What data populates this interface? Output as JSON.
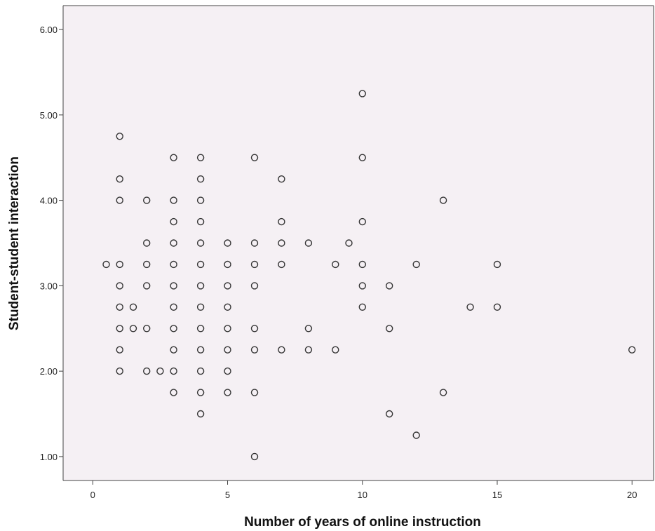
{
  "chart_data": {
    "type": "scatter",
    "title": "",
    "xlabel": "Number of years of online instruction",
    "ylabel": "Student-student interaction",
    "xlim": [
      -1.1,
      20.8
    ],
    "ylim": [
      0.72,
      6.28
    ],
    "xticks": [
      0,
      5,
      10,
      15,
      20
    ],
    "xtick_labels": [
      "0",
      "5",
      "10",
      "15",
      "20"
    ],
    "yticks": [
      1,
      2,
      3,
      4,
      5,
      6
    ],
    "ytick_labels": [
      "1.00",
      "2.00",
      "3.00",
      "4.00",
      "5.00",
      "6.00"
    ],
    "grid": false,
    "legend": "none",
    "plot_background": "#f5f0f4",
    "marker_color": "#333333",
    "points": [
      [
        0.5,
        3.25
      ],
      [
        1,
        4.75
      ],
      [
        1,
        4.25
      ],
      [
        1,
        4.0
      ],
      [
        1,
        3.25
      ],
      [
        1,
        3.0
      ],
      [
        1,
        2.75
      ],
      [
        1,
        2.5
      ],
      [
        1,
        2.25
      ],
      [
        1,
        2.0
      ],
      [
        1.5,
        2.75
      ],
      [
        1.5,
        2.5
      ],
      [
        2,
        4.0
      ],
      [
        2,
        3.5
      ],
      [
        2,
        3.25
      ],
      [
        2,
        3.0
      ],
      [
        2,
        2.5
      ],
      [
        2,
        2.0
      ],
      [
        2.5,
        2.0
      ],
      [
        3,
        4.5
      ],
      [
        3,
        4.0
      ],
      [
        3,
        3.75
      ],
      [
        3,
        3.5
      ],
      [
        3,
        3.25
      ],
      [
        3,
        3.0
      ],
      [
        3,
        2.75
      ],
      [
        3,
        2.5
      ],
      [
        3,
        2.25
      ],
      [
        3,
        2.0
      ],
      [
        3,
        1.75
      ],
      [
        4,
        4.5
      ],
      [
        4,
        4.25
      ],
      [
        4,
        4.0
      ],
      [
        4,
        3.75
      ],
      [
        4,
        3.5
      ],
      [
        4,
        3.25
      ],
      [
        4,
        3.0
      ],
      [
        4,
        2.75
      ],
      [
        4,
        2.5
      ],
      [
        4,
        2.25
      ],
      [
        4,
        2.0
      ],
      [
        4,
        1.75
      ],
      [
        4,
        1.5
      ],
      [
        5,
        3.5
      ],
      [
        5,
        3.25
      ],
      [
        5,
        3.0
      ],
      [
        5,
        2.75
      ],
      [
        5,
        2.5
      ],
      [
        5,
        2.25
      ],
      [
        5,
        2.0
      ],
      [
        5,
        1.75
      ],
      [
        6,
        4.5
      ],
      [
        6,
        3.5
      ],
      [
        6,
        3.25
      ],
      [
        6,
        3.0
      ],
      [
        6,
        2.5
      ],
      [
        6,
        2.25
      ],
      [
        6,
        1.75
      ],
      [
        6,
        1.0
      ],
      [
        7,
        4.25
      ],
      [
        7,
        3.75
      ],
      [
        7,
        3.5
      ],
      [
        7,
        3.25
      ],
      [
        7,
        2.25
      ],
      [
        8,
        3.5
      ],
      [
        8,
        2.5
      ],
      [
        8,
        2.25
      ],
      [
        9,
        3.25
      ],
      [
        9,
        2.25
      ],
      [
        9.5,
        3.5
      ],
      [
        10,
        5.25
      ],
      [
        10,
        4.5
      ],
      [
        10,
        3.75
      ],
      [
        10,
        3.25
      ],
      [
        10,
        3.0
      ],
      [
        10,
        2.75
      ],
      [
        11,
        3.0
      ],
      [
        11,
        2.5
      ],
      [
        11,
        1.5
      ],
      [
        12,
        3.25
      ],
      [
        12,
        1.25
      ],
      [
        13,
        4.0
      ],
      [
        13,
        1.75
      ],
      [
        14,
        2.75
      ],
      [
        15,
        3.25
      ],
      [
        15,
        2.75
      ],
      [
        20,
        2.25
      ]
    ]
  }
}
